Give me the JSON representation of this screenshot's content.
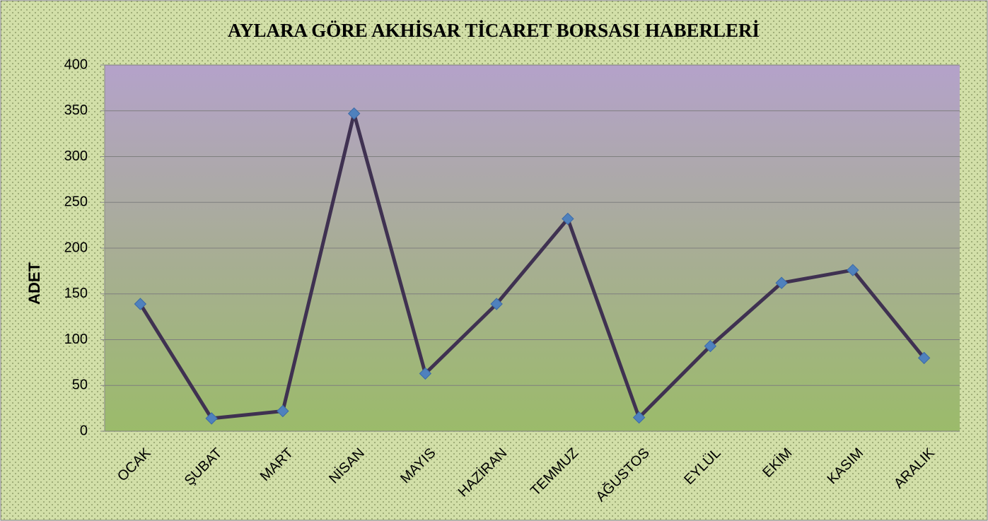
{
  "chart_data": {
    "type": "line",
    "title": "AYLARA GÖRE AKHİSAR TİCARET BORSASI HABERLERİ",
    "y_label": "ADET",
    "categories": [
      "OCAK",
      "ŞUBAT",
      "MART",
      "NİSAN",
      "MAYIS",
      "HAZİRAN",
      "TEMMUZ",
      "AĞUSTOS",
      "EYLÜL",
      "EKİM",
      "KASIM",
      "ARALIK"
    ],
    "values": [
      139,
      14,
      22,
      347,
      63,
      139,
      232,
      15,
      93,
      162,
      176,
      80
    ],
    "color": "#3f3151",
    "marker_color": "#4f81bd",
    "ylim": [
      0,
      400
    ],
    "yticks": [
      0,
      50,
      100,
      150,
      200,
      250,
      300,
      350,
      400
    ],
    "grid": true
  }
}
